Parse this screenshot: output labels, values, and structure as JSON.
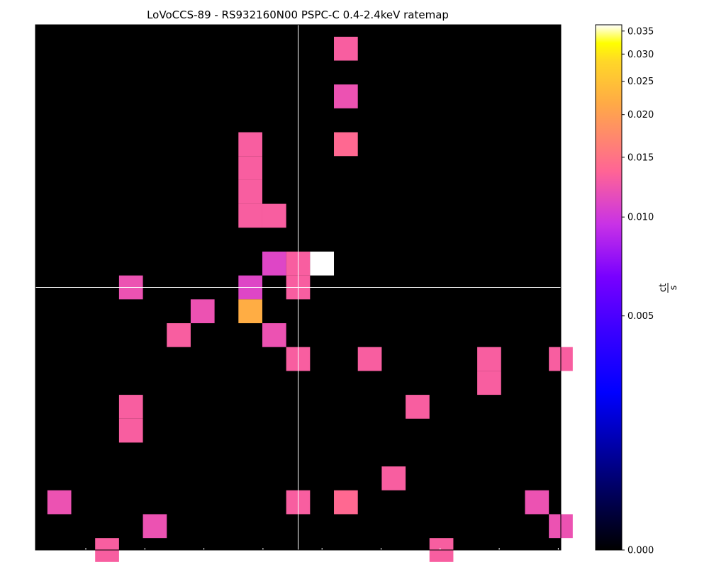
{
  "chart_data": {
    "type": "heatmap",
    "title": "LoVoCCS-89 - RS932160N00 PSPC-C 0.4-2.4keV ratemap",
    "xlabel": "",
    "ylabel": "",
    "grid": false,
    "crosshair": {
      "col": 11,
      "row": 11
    },
    "grid_size": {
      "cols": 22,
      "rows": 22
    },
    "unit": "ct/s",
    "colorbar": {
      "unit_numerator": "ct",
      "unit_denominator": "s",
      "min": 0.0,
      "max": 0.0365,
      "scale": "asinh",
      "colormap": "gnuplot2",
      "ticks": [
        "0.000",
        "0.005",
        "0.010",
        "0.015",
        "0.020",
        "0.025",
        "0.030",
        "0.035"
      ],
      "tick_values": [
        0.0,
        0.005,
        0.01,
        0.015,
        0.02,
        0.025,
        0.03,
        0.035
      ]
    },
    "pixels": [
      {
        "col": 13,
        "row": 1,
        "value": 0.013
      },
      {
        "col": 13,
        "row": 3,
        "value": 0.012
      },
      {
        "col": 9,
        "row": 5,
        "value": 0.013
      },
      {
        "col": 13,
        "row": 5,
        "value": 0.014
      },
      {
        "col": 9,
        "row": 6,
        "value": 0.013
      },
      {
        "col": 9,
        "row": 7,
        "value": 0.013
      },
      {
        "col": 9,
        "row": 8,
        "value": 0.013
      },
      {
        "col": 10,
        "row": 8,
        "value": 0.013
      },
      {
        "col": 10,
        "row": 10,
        "value": 0.011
      },
      {
        "col": 11,
        "row": 10,
        "value": 0.013
      },
      {
        "col": 12,
        "row": 10,
        "value": 0.0365
      },
      {
        "col": 4,
        "row": 11,
        "value": 0.012
      },
      {
        "col": 9,
        "row": 11,
        "value": 0.011
      },
      {
        "col": 11,
        "row": 11,
        "value": 0.013
      },
      {
        "col": 7,
        "row": 12,
        "value": 0.012
      },
      {
        "col": 9,
        "row": 12,
        "value": 0.022
      },
      {
        "col": 6,
        "row": 13,
        "value": 0.013
      },
      {
        "col": 10,
        "row": 13,
        "value": 0.012
      },
      {
        "col": 11,
        "row": 14,
        "value": 0.013
      },
      {
        "col": 14,
        "row": 14,
        "value": 0.013
      },
      {
        "col": 19,
        "row": 14,
        "value": 0.013
      },
      {
        "col": 22,
        "row": 14,
        "value": 0.013
      },
      {
        "col": 19,
        "row": 15,
        "value": 0.013
      },
      {
        "col": 4,
        "row": 16,
        "value": 0.013
      },
      {
        "col": 16,
        "row": 16,
        "value": 0.013
      },
      {
        "col": 4,
        "row": 17,
        "value": 0.013
      },
      {
        "col": 15,
        "row": 19,
        "value": 0.013
      },
      {
        "col": 1,
        "row": 20,
        "value": 0.012
      },
      {
        "col": 11,
        "row": 20,
        "value": 0.013
      },
      {
        "col": 13,
        "row": 20,
        "value": 0.014
      },
      {
        "col": 21,
        "row": 20,
        "value": 0.012
      },
      {
        "col": 5,
        "row": 21,
        "value": 0.012
      },
      {
        "col": 22,
        "row": 21,
        "value": 0.012
      },
      {
        "col": 3,
        "row": 22,
        "value": 0.013
      },
      {
        "col": 17,
        "row": 22,
        "value": 0.013
      }
    ]
  }
}
